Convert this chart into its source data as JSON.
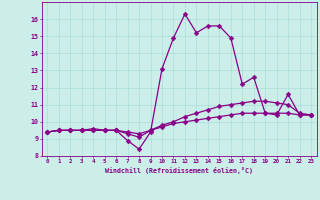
{
  "xlabel": "Windchill (Refroidissement éolien,°C)",
  "background_color": "#cceee8",
  "line_color": "#880088",
  "grid_color": "#aadddd",
  "x_hours": [
    0,
    1,
    2,
    3,
    4,
    5,
    6,
    7,
    8,
    9,
    10,
    11,
    12,
    13,
    14,
    15,
    16,
    17,
    18,
    19,
    20,
    21,
    22,
    23
  ],
  "series1": [
    9.4,
    9.5,
    9.5,
    9.5,
    9.6,
    9.5,
    9.5,
    8.9,
    8.4,
    9.4,
    13.1,
    14.9,
    16.3,
    15.2,
    15.6,
    15.6,
    14.9,
    12.2,
    12.6,
    10.5,
    10.4,
    11.6,
    10.4,
    10.4
  ],
  "series2": [
    9.4,
    9.5,
    9.5,
    9.5,
    9.5,
    9.5,
    9.5,
    9.3,
    9.1,
    9.5,
    9.8,
    10.0,
    10.3,
    10.5,
    10.7,
    10.9,
    11.0,
    11.1,
    11.2,
    11.2,
    11.1,
    11.0,
    10.5,
    10.4
  ],
  "series3": [
    9.4,
    9.5,
    9.5,
    9.5,
    9.5,
    9.5,
    9.5,
    9.4,
    9.3,
    9.5,
    9.7,
    9.9,
    10.0,
    10.1,
    10.2,
    10.3,
    10.4,
    10.5,
    10.5,
    10.5,
    10.5,
    10.5,
    10.4,
    10.4
  ],
  "ylim": [
    8,
    17
  ],
  "xlim": [
    -0.5,
    23.5
  ],
  "yticks": [
    8,
    9,
    10,
    11,
    12,
    13,
    14,
    15,
    16
  ],
  "xticks": [
    0,
    1,
    2,
    3,
    4,
    5,
    6,
    7,
    8,
    9,
    10,
    11,
    12,
    13,
    14,
    15,
    16,
    17,
    18,
    19,
    20,
    21,
    22,
    23
  ],
  "font_color": "#880088",
  "markersize": 2.5,
  "linewidth": 0.9
}
